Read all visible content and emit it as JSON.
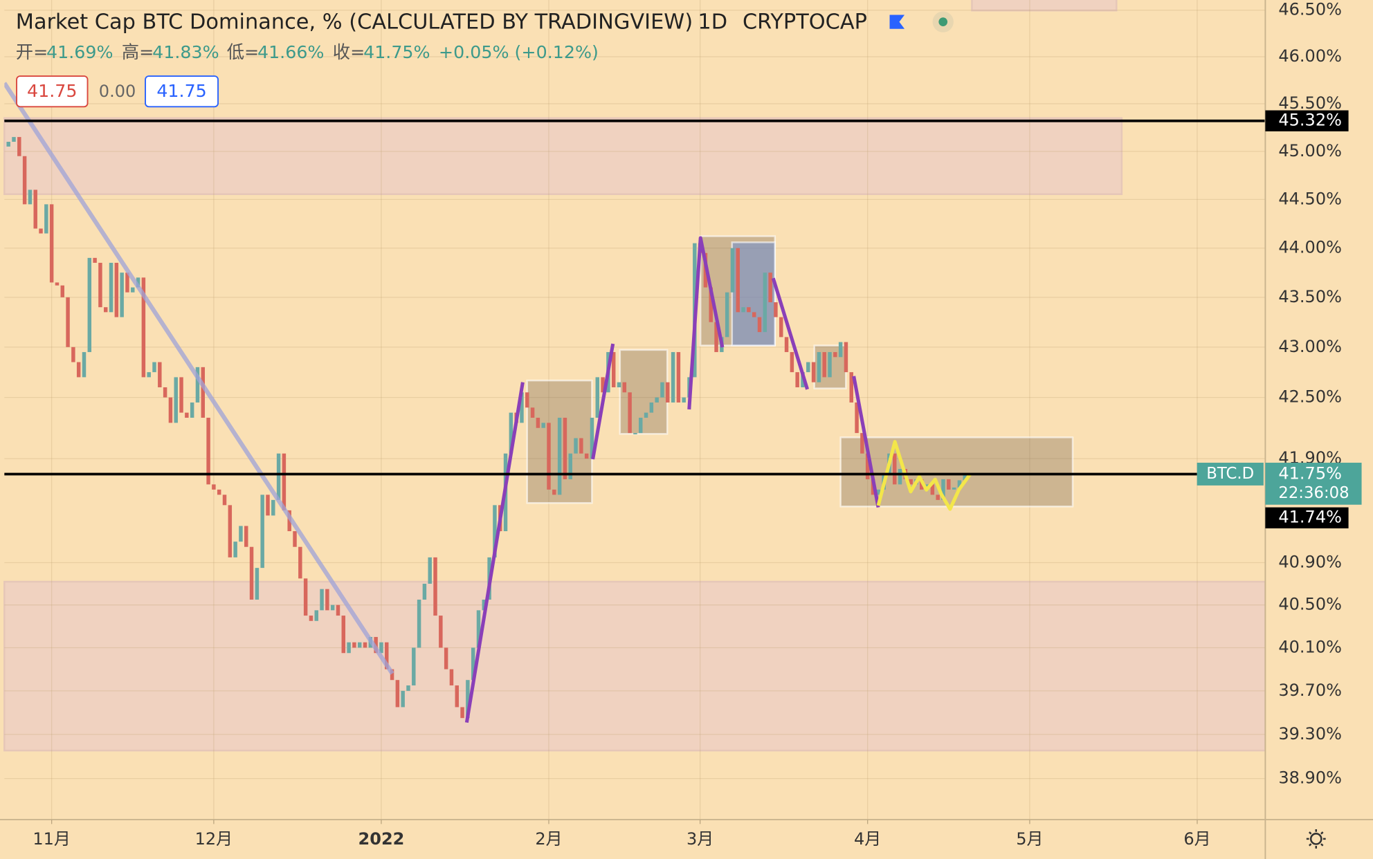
{
  "chart_data": {
    "type": "candlestick",
    "title": "Market Cap BTC Dominance, % (CALCULATED BY TRADINGVIEW)",
    "interval": "1D",
    "exchange": "CRYPTOCAP",
    "ohlc_legend": [
      {
        "label": "开=",
        "value": "41.69%"
      },
      {
        "label": "高=",
        "value": "41.83%"
      },
      {
        "label": "低=",
        "value": "41.66%"
      },
      {
        "label": "收=",
        "value": "41.75%"
      }
    ],
    "change": "+0.05% (+0.12%)",
    "order_boxes": [
      "41.75",
      "0.00",
      "41.75"
    ],
    "x": [
      -8,
      -7,
      -6,
      -5,
      -4,
      -3,
      -2,
      -1,
      0,
      1,
      2,
      3,
      4,
      5,
      6,
      7,
      8,
      9,
      10,
      11,
      12,
      13,
      14,
      15,
      16,
      17,
      18,
      19,
      20,
      21,
      22,
      23,
      24,
      25,
      26,
      27,
      28,
      29,
      30,
      31,
      32,
      33,
      34,
      35,
      36,
      37,
      38,
      39,
      40,
      41,
      42,
      43,
      44,
      45,
      46,
      47,
      48,
      49,
      50,
      51,
      52,
      53,
      54,
      55,
      56,
      57,
      58,
      59,
      60,
      61,
      62,
      63,
      64,
      65,
      66,
      67,
      68,
      69,
      70,
      71,
      72,
      73,
      74,
      75,
      76,
      77,
      78,
      79,
      80,
      81,
      82,
      83,
      84,
      85,
      86,
      87,
      88,
      89,
      90,
      91,
      92,
      93,
      94,
      95,
      96,
      97,
      98,
      99,
      100,
      101,
      102,
      103,
      104,
      105,
      106,
      107,
      108,
      109,
      110,
      111,
      112,
      113,
      114,
      115,
      116,
      117,
      118,
      119,
      120,
      121,
      122,
      123,
      124,
      125,
      126,
      127,
      128,
      129,
      130,
      131,
      132,
      133,
      134,
      135,
      136,
      137,
      138,
      139,
      140,
      141,
      142,
      143,
      144,
      145,
      146,
      147,
      148,
      149,
      150,
      151,
      152,
      153,
      154,
      155,
      156,
      157,
      158,
      159,
      160,
      161,
      162,
      163,
      164,
      165,
      166,
      167,
      168,
      169
    ],
    "open": [
      45.05,
      45.1,
      45.15,
      44.95,
      44.45,
      44.6,
      44.2,
      44.15,
      44.45,
      43.65,
      43.62,
      43.5,
      43.0,
      42.85,
      42.7,
      42.95,
      43.9,
      43.85,
      43.4,
      43.35,
      43.85,
      43.3,
      43.75,
      43.55,
      43.6,
      43.7,
      42.7,
      42.75,
      42.85,
      42.6,
      42.5,
      42.25,
      42.7,
      42.35,
      42.3,
      42.45,
      42.8,
      42.3,
      41.65,
      41.6,
      41.55,
      41.45,
      40.95,
      41.1,
      41.25,
      41.05,
      40.55,
      40.85,
      41.55,
      41.35,
      41.5,
      41.95,
      41.4,
      41.2,
      41.05,
      40.75,
      40.4,
      40.35,
      40.45,
      40.65,
      40.45,
      40.5,
      40.4,
      40.05,
      40.15,
      40.1,
      40.15,
      40.1,
      40.2,
      40.05,
      40.15,
      39.9,
      39.8,
      39.55,
      39.7,
      39.75,
      40.1,
      40.55,
      40.7,
      40.95,
      40.4,
      40.1,
      39.9,
      39.75,
      39.55,
      39.45,
      39.8,
      40.1,
      40.45,
      40.55,
      40.95,
      41.45,
      41.2,
      41.95,
      42.35,
      42.25,
      42.55,
      42.4,
      42.3,
      42.2,
      42.25,
      41.6,
      41.55,
      42.3,
      41.7,
      41.95,
      42.1,
      41.95,
      41.9,
      42.3,
      42.7,
      42.55,
      42.95,
      42.6,
      42.65,
      42.55,
      42.15,
      42.15,
      42.3,
      42.35,
      42.45,
      42.5,
      42.65,
      42.45,
      42.95,
      42.45,
      42.5,
      42.7,
      44.05,
      43.95,
      43.6,
      43.25,
      42.95,
      43.1,
      43.55,
      44.0,
      43.35,
      43.4,
      43.35,
      43.3,
      43.15,
      43.75,
      43.45,
      43.3,
      43.1,
      42.95,
      42.75,
      42.6,
      42.75,
      42.85,
      42.65,
      42.95,
      42.7,
      42.95,
      42.9,
      43.05,
      42.75,
      42.45,
      42.15,
      41.95,
      41.7,
      41.55,
      41.6,
      41.75,
      41.95,
      41.65,
      41.8,
      41.7,
      41.65,
      41.7,
      41.6,
      41.65,
      41.55,
      41.5,
      41.7,
      41.6,
      41.62,
      41.69
    ],
    "close": [
      45.1,
      45.15,
      44.95,
      44.45,
      44.6,
      44.2,
      44.15,
      44.45,
      43.65,
      43.62,
      43.5,
      43.0,
      42.85,
      42.7,
      42.95,
      43.9,
      43.85,
      43.4,
      43.35,
      43.85,
      43.3,
      43.75,
      43.55,
      43.6,
      43.7,
      42.7,
      42.75,
      42.85,
      42.6,
      42.5,
      42.25,
      42.7,
      42.35,
      42.3,
      42.45,
      42.8,
      42.3,
      41.65,
      41.6,
      41.55,
      41.45,
      40.95,
      41.1,
      41.25,
      41.05,
      40.55,
      40.85,
      41.55,
      41.35,
      41.5,
      41.95,
      41.4,
      41.2,
      41.05,
      40.75,
      40.4,
      40.35,
      40.45,
      40.65,
      40.45,
      40.5,
      40.4,
      40.05,
      40.15,
      40.1,
      40.15,
      40.1,
      40.2,
      40.05,
      40.15,
      39.9,
      39.8,
      39.55,
      39.7,
      39.75,
      40.1,
      40.55,
      40.7,
      40.95,
      40.4,
      40.1,
      39.9,
      39.75,
      39.55,
      39.45,
      39.8,
      40.1,
      40.45,
      40.55,
      40.95,
      41.45,
      41.2,
      41.95,
      42.35,
      42.25,
      42.55,
      42.4,
      42.3,
      42.2,
      42.25,
      41.6,
      41.55,
      42.3,
      41.7,
      41.95,
      42.1,
      41.95,
      41.9,
      42.3,
      42.7,
      42.55,
      42.95,
      42.6,
      42.65,
      42.55,
      42.15,
      42.15,
      42.3,
      42.35,
      42.45,
      42.5,
      42.65,
      42.45,
      42.95,
      42.45,
      42.5,
      42.7,
      44.05,
      43.95,
      43.6,
      43.25,
      42.95,
      43.1,
      43.55,
      44.0,
      43.35,
      43.4,
      43.35,
      43.3,
      43.15,
      43.75,
      43.45,
      43.3,
      43.1,
      42.95,
      42.75,
      42.6,
      42.75,
      42.85,
      42.65,
      42.95,
      42.7,
      42.95,
      42.9,
      43.05,
      42.75,
      42.45,
      42.15,
      41.95,
      41.7,
      41.55,
      41.6,
      41.75,
      41.95,
      41.65,
      41.8,
      41.7,
      41.65,
      41.7,
      41.6,
      41.65,
      41.55,
      41.5,
      41.7,
      41.6,
      41.62,
      41.69,
      41.75
    ],
    "up_color": "#6aa9a4",
    "down_color": "#d8675c",
    "xlim": [
      -8.75,
      224.6
    ],
    "xticks": [
      {
        "value": 0,
        "label": "11月"
      },
      {
        "value": 30,
        "label": "12月"
      },
      {
        "value": 61,
        "label": "2022"
      },
      {
        "value": 92,
        "label": "2月"
      },
      {
        "value": 120,
        "label": "3月"
      },
      {
        "value": 151,
        "label": "4月"
      },
      {
        "value": 181,
        "label": "5月"
      },
      {
        "value": 212,
        "label": "6月"
      }
    ],
    "ylim": [
      38.53,
      46.61
    ],
    "log_scale": true,
    "grid": true,
    "yticks": [
      {
        "value": 46.5,
        "label": "46.50%"
      },
      {
        "value": 46.0,
        "label": "46.00%"
      },
      {
        "value": 45.5,
        "label": "45.50%"
      },
      {
        "value": 45.0,
        "label": "45.00%"
      },
      {
        "value": 44.5,
        "label": "44.50%"
      },
      {
        "value": 44.0,
        "label": "44.00%"
      },
      {
        "value": 43.5,
        "label": "43.50%"
      },
      {
        "value": 43.0,
        "label": "43.00%"
      },
      {
        "value": 42.5,
        "label": "42.50%"
      },
      {
        "value": 41.9,
        "label": "41.90%"
      },
      {
        "value": 40.9,
        "label": "40.90%"
      },
      {
        "value": 40.5,
        "label": "40.50%"
      },
      {
        "value": 40.1,
        "label": "40.10%"
      },
      {
        "value": 39.7,
        "label": "39.70%"
      },
      {
        "value": 39.3,
        "label": "39.30%"
      },
      {
        "value": 38.9,
        "label": "38.90%"
      }
    ],
    "level_line": {
      "value": 45.32,
      "label": "45.32%"
    },
    "last_price": {
      "value": 41.75,
      "label": "41.75%",
      "symbol": "BTC.D",
      "countdown": "22:36:08"
    },
    "crosshair_label": "41.74%"
  }
}
